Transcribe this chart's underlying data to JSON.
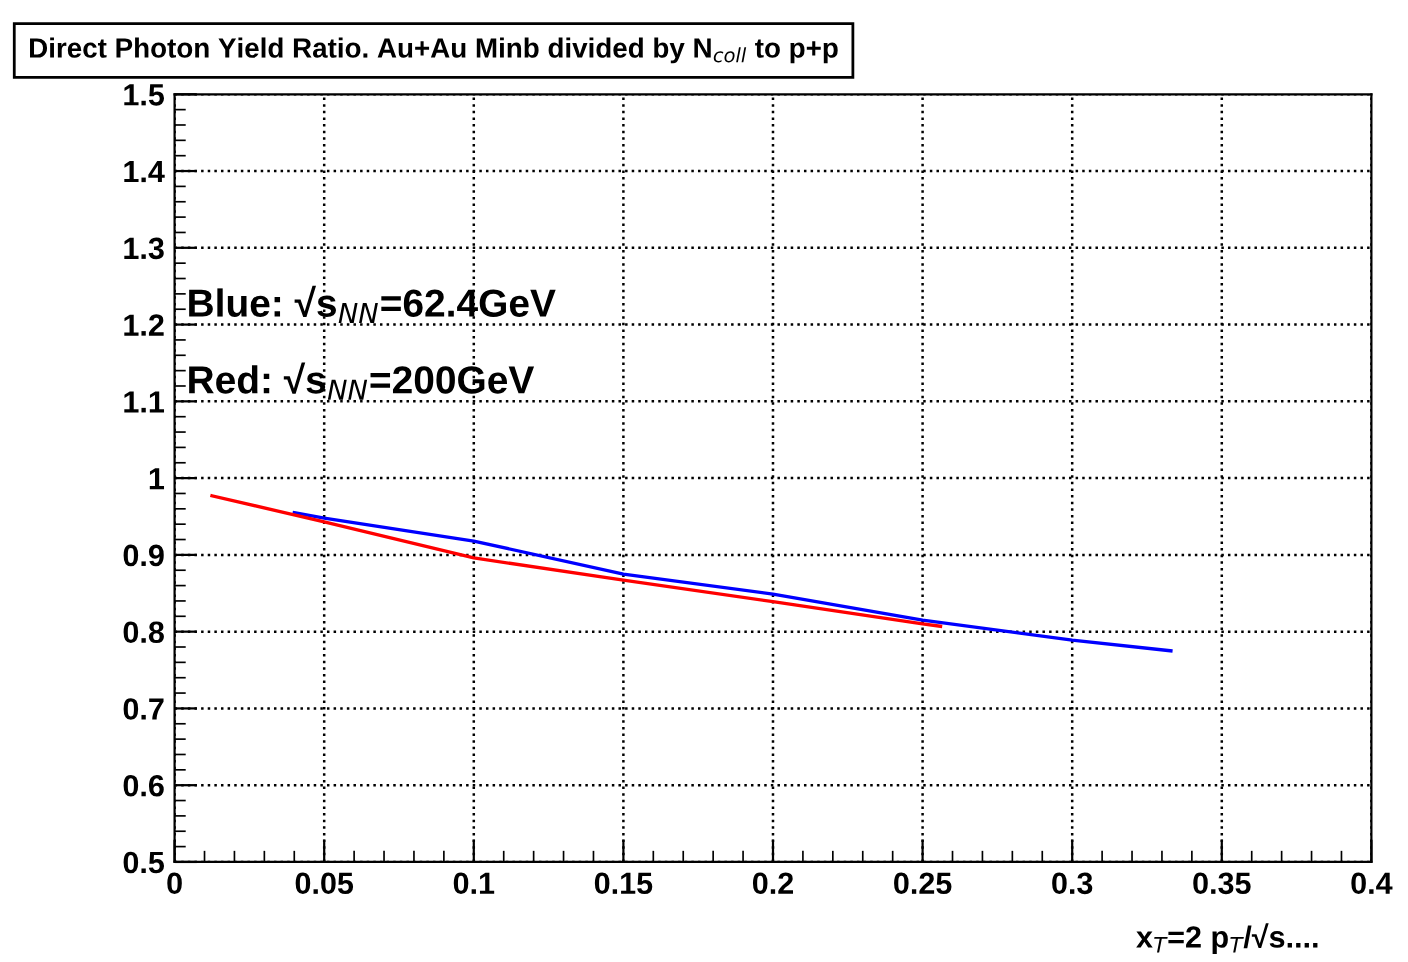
{
  "chart_data": {
    "type": "line",
    "title": "Direct Photon Yield Ratio. Au+Au Minb divided by N$_{coll}$ to p+p",
    "xlabel": "x$_{T}$=2 p$_{T}$/√s....",
    "annotations": [
      "Blue: √s$_{NN}$=62.4GeV",
      "Red: √s$_{NN}$=200GeV"
    ],
    "series": [
      {
        "color": "#0000ff",
        "x": [
          0.04,
          0.05,
          0.1,
          0.15,
          0.2,
          0.25,
          0.3,
          0.333
        ],
        "values": [
          0.955,
          0.948,
          0.918,
          0.875,
          0.849,
          0.815,
          0.789,
          0.775
        ]
      },
      {
        "color": "#ff0000",
        "x": [
          0.0125,
          0.05,
          0.1,
          0.15,
          0.2,
          0.25,
          0.256
        ],
        "values": [
          0.977,
          0.943,
          0.896,
          0.867,
          0.839,
          0.81,
          0.807
        ]
      }
    ],
    "xlim": [
      0,
      0.4
    ],
    "ylim": [
      0.5,
      1.5
    ],
    "xticks": [
      0,
      0.05,
      0.1,
      0.15,
      0.2,
      0.25,
      0.3,
      0.35,
      0.4
    ],
    "yticks": [
      0.5,
      0.6,
      0.7,
      0.8,
      0.9,
      1,
      1.1,
      1.2,
      1.3,
      1.4,
      1.5
    ],
    "grid": true,
    "marker": "none",
    "line_style": "solid"
  }
}
